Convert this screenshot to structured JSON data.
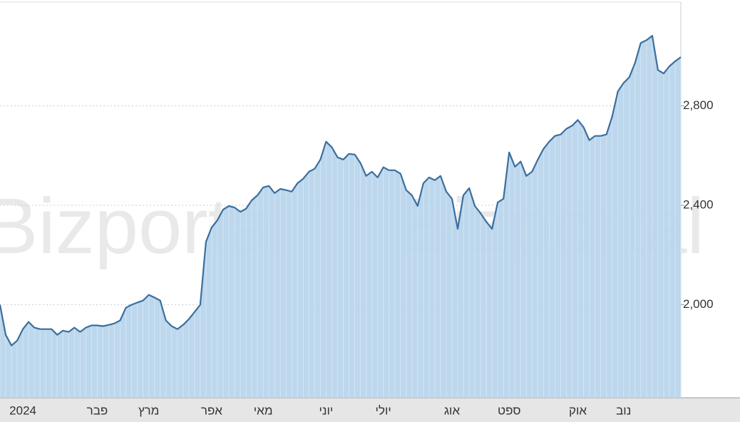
{
  "chart_data": {
    "type": "area",
    "watermark": "Bizportal",
    "categories": [
      null,
      null,
      null,
      null,
      "2024",
      null,
      null,
      null,
      null,
      null,
      null,
      null,
      null,
      null,
      null,
      null,
      null,
      "פבר",
      null,
      null,
      null,
      null,
      null,
      null,
      null,
      null,
      "מרץ",
      null,
      null,
      null,
      null,
      null,
      null,
      null,
      null,
      null,
      null,
      "אפר",
      null,
      null,
      null,
      null,
      null,
      null,
      null,
      null,
      "מאי",
      null,
      null,
      null,
      null,
      null,
      null,
      null,
      null,
      null,
      null,
      "יוני",
      null,
      null,
      null,
      null,
      null,
      null,
      null,
      null,
      null,
      "יולי",
      null,
      null,
      null,
      null,
      null,
      null,
      null,
      null,
      null,
      null,
      null,
      "אוג",
      null,
      null,
      null,
      null,
      null,
      null,
      null,
      null,
      null,
      "ספט",
      null,
      null,
      null,
      null,
      null,
      null,
      null,
      null,
      null,
      null,
      null,
      "אוק",
      null,
      null,
      null,
      null,
      null,
      null,
      null,
      "נוב",
      null,
      null,
      null,
      null,
      null,
      null,
      null,
      null,
      null,
      null
    ],
    "values": [
      2000,
      1879,
      1836,
      1856,
      1902,
      1931,
      1908,
      1902,
      1902,
      1902,
      1879,
      1896,
      1891,
      1908,
      1891,
      1908,
      1917,
      1917,
      1914,
      1919,
      1925,
      1937,
      1988,
      2000,
      2009,
      2017,
      2040,
      2029,
      2017,
      1937,
      1914,
      1902,
      1919,
      1942,
      1971,
      2000,
      2253,
      2311,
      2340,
      2383,
      2397,
      2391,
      2374,
      2386,
      2420,
      2440,
      2472,
      2478,
      2449,
      2466,
      2461,
      2455,
      2489,
      2507,
      2535,
      2547,
      2584,
      2656,
      2633,
      2593,
      2584,
      2607,
      2604,
      2570,
      2518,
      2535,
      2512,
      2553,
      2541,
      2541,
      2527,
      2461,
      2440,
      2397,
      2489,
      2512,
      2501,
      2518,
      2455,
      2426,
      2305,
      2440,
      2469,
      2397,
      2368,
      2334,
      2305,
      2412,
      2426,
      2613,
      2555,
      2576,
      2518,
      2535,
      2584,
      2627,
      2656,
      2679,
      2685,
      2708,
      2720,
      2743,
      2714,
      2662,
      2679,
      2679,
      2685,
      2757,
      2858,
      2892,
      2915,
      2973,
      3053,
      3064,
      3082,
      2944,
      2930,
      2959,
      2979,
      2996
    ],
    "color": "#3a6f9e",
    "fill": "#b9d5ec",
    "ylim": [
      1626,
      3217
    ],
    "yticks": [
      {
        "value": 2000,
        "label": "2,000"
      },
      {
        "value": 2400,
        "label": "2,400"
      },
      {
        "value": 2800,
        "label": "2,800"
      }
    ],
    "grid": true
  }
}
